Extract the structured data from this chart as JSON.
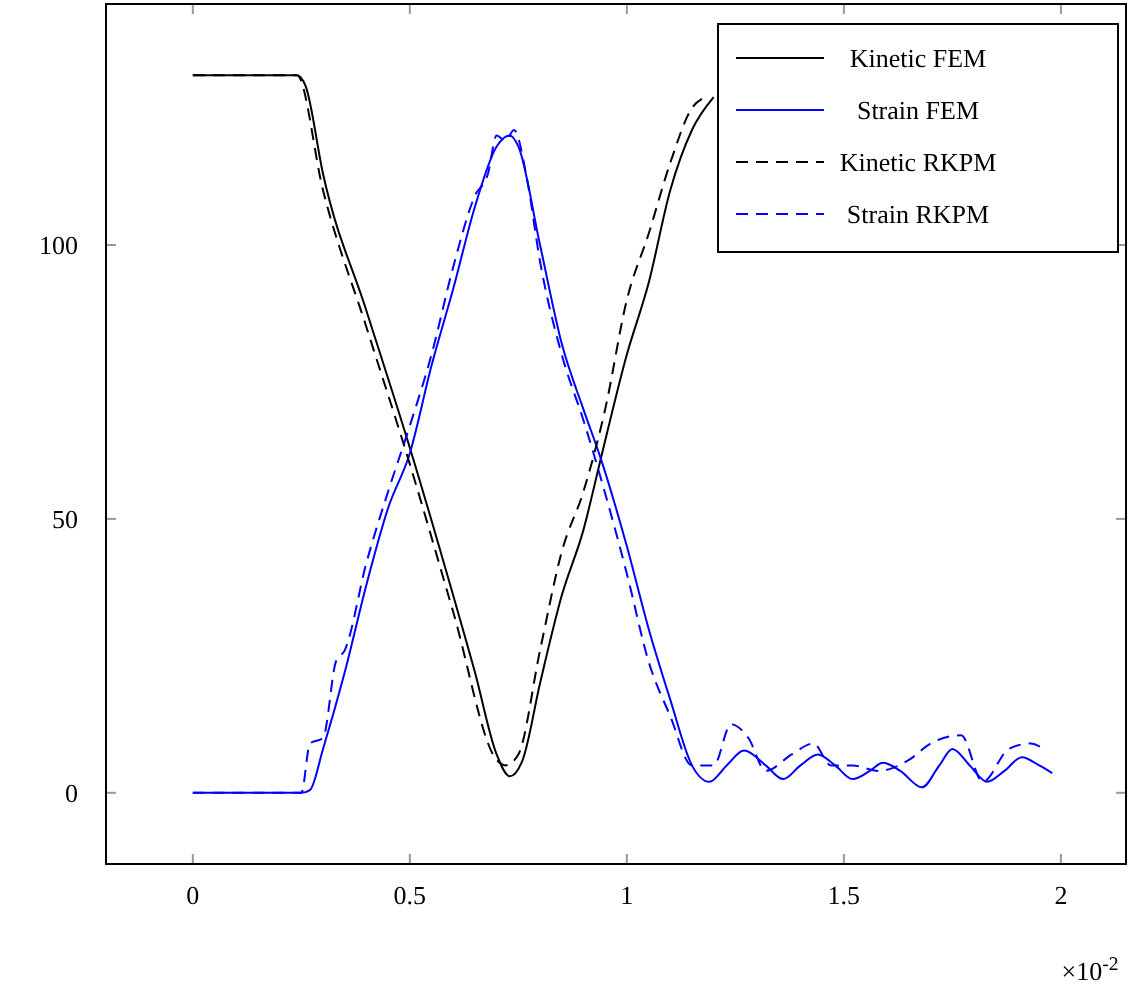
{
  "chart_data": {
    "type": "line",
    "xlim": [
      -0.2,
      2.15
    ],
    "ylim": [
      -13,
      144
    ],
    "xticks": [
      0,
      0.5,
      1,
      1.5,
      2
    ],
    "yticks": [
      0,
      50,
      100
    ],
    "grid": false,
    "legend": "top right",
    "marker": "none",
    "annotations": [
      "×10$^{-2}$"
    ],
    "series": [
      {
        "name": "Kinetic FEM",
        "color": "#000000",
        "line_style": "solid",
        "x": [
          0,
          0.24,
          0.26,
          0.3,
          0.4,
          0.5,
          0.6,
          0.65,
          0.7,
          0.73,
          0.76,
          0.8,
          0.85,
          0.9,
          0.94,
          1.0,
          1.05,
          1.1,
          1.15,
          1.2
        ],
        "values": [
          131,
          131,
          129,
          113,
          88,
          63,
          36,
          22,
          7,
          3,
          6,
          20,
          36,
          48,
          61,
          80,
          93,
          110,
          121,
          127
        ]
      },
      {
        "name": "Strain FEM",
        "color": "#0000ff",
        "line_style": "solid",
        "x": [
          0,
          0.25,
          0.27,
          0.3,
          0.35,
          0.4,
          0.45,
          0.5,
          0.55,
          0.6,
          0.65,
          0.7,
          0.73,
          0.75,
          0.8,
          0.85,
          0.9,
          0.94,
          1.0,
          1.05,
          1.1,
          1.15,
          1.19,
          1.23,
          1.27,
          1.32,
          1.36,
          1.4,
          1.44,
          1.48,
          1.52,
          1.56,
          1.59,
          1.63,
          1.68,
          1.72,
          1.75,
          1.79,
          1.83,
          1.87,
          1.91,
          1.95,
          1.98
        ],
        "values": [
          0,
          0,
          0.5,
          8,
          22,
          38,
          52,
          62,
          78,
          92,
          107,
          118,
          120,
          118,
          100,
          82,
          70,
          61,
          45,
          30,
          17,
          5,
          2,
          5,
          7.7,
          5,
          2.5,
          5,
          7,
          5,
          2.5,
          4,
          5.5,
          4,
          1,
          5,
          8,
          5,
          2,
          4,
          6.5,
          5,
          3.6
        ]
      },
      {
        "name": "Kinetic RKPM",
        "color": "#000000",
        "line_style": "dashed",
        "x": [
          0,
          0.24,
          0.3,
          0.4,
          0.5,
          0.6,
          0.7,
          0.72,
          0.75,
          0.8,
          0.85,
          0.9,
          0.95,
          1.0,
          1.05,
          1.1,
          1.15,
          1.18
        ],
        "values": [
          131,
          131,
          110,
          85,
          60,
          33,
          6,
          5,
          7,
          26,
          44,
          55,
          70,
          90,
          102,
          115,
          125,
          127
        ]
      },
      {
        "name": "Strain RKPM",
        "color": "#0000ff",
        "line_style": "dashed",
        "x": [
          0,
          0.25,
          0.27,
          0.3,
          0.33,
          0.35,
          0.4,
          0.45,
          0.5,
          0.55,
          0.6,
          0.65,
          0.68,
          0.7,
          0.72,
          0.74,
          0.77,
          0.8,
          0.85,
          0.9,
          1.0,
          1.05,
          1.1,
          1.15,
          1.2,
          1.24,
          1.28,
          1.32,
          1.38,
          1.43,
          1.47,
          1.52,
          1.58,
          1.65,
          1.7,
          1.77,
          1.82,
          1.88,
          1.93,
          1.96
        ],
        "values": [
          0,
          0,
          9,
          10,
          24,
          26,
          42,
          55,
          67,
          80,
          96,
          109,
          113,
          120,
          119,
          121,
          112,
          97,
          80,
          68,
          40,
          24,
          14,
          5,
          5,
          12.5,
          10,
          4,
          7,
          9,
          5,
          5,
          4,
          6,
          9,
          10.5,
          2,
          8,
          9,
          8
        ]
      }
    ]
  }
}
